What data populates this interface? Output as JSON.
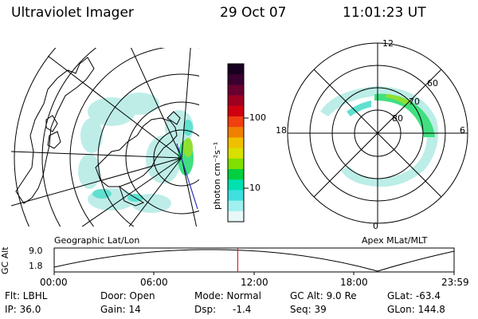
{
  "header": {
    "title": "Ultraviolet Imager",
    "date": "29 Oct 07",
    "time": "11:01:23 UT"
  },
  "left_map": {
    "caption": "Geographic Lat/Lon"
  },
  "colorbar": {
    "unit_label": "photon cm⁻²s⁻¹",
    "tick_high": "100",
    "tick_low": "10",
    "colors": [
      "#1a0020",
      "#3a0030",
      "#6a0030",
      "#a00020",
      "#d00010",
      "#f04010",
      "#f08000",
      "#f0c000",
      "#d8e000",
      "#80e000",
      "#00d040",
      "#00e0b0",
      "#40e0e0",
      "#a0f0f0",
      "#e8f8f8"
    ]
  },
  "right_polar": {
    "caption": "Apex MLat/MLT",
    "label_top": "12",
    "label_left": "18",
    "label_right": "6",
    "label_bottom": "0",
    "lat_60": "60",
    "lat_70": "70",
    "lat_80": "80"
  },
  "orbit": {
    "ylabel": "GC Alt",
    "ytick_top": "9.0",
    "ytick_bottom": "1.8",
    "xticks": [
      "00:00",
      "06:00",
      "12:00",
      "18:00",
      "23:59"
    ],
    "current_time_fraction": 0.459
  },
  "status": {
    "flt_label": "Flt: LBHL",
    "ip_label": "IP: 36.0",
    "door_label": "Door: Open",
    "gain_label": "Gain: 14",
    "mode_label": "Mode: Normal",
    "dsp_label": "Dsp:",
    "dsp_value": "-1.4",
    "gcalt_label": "GC Alt: 9.0 Re",
    "seq_label": "Seq: 39",
    "glat_label": "GLat: -63.4",
    "glon_label": "GLon: 144.8"
  }
}
